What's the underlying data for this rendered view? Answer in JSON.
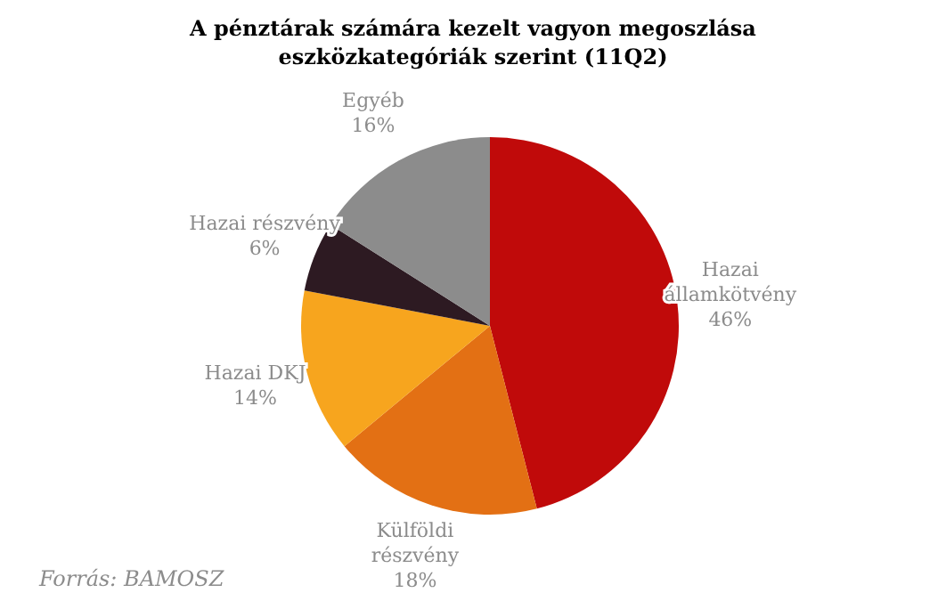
{
  "chart_data": {
    "type": "pie",
    "title": "A pénztárak számára kezelt vagyon megoszlása eszközkategóriák szerint (11Q2)",
    "categories": [
      "Hazai államkötvény",
      "Külföldi részvény",
      "Hazai DKJ",
      "Hazai részvény",
      "Egyéb"
    ],
    "values": [
      46,
      18,
      14,
      6,
      16
    ],
    "colors": [
      "#c00a0a",
      "#e37014",
      "#f7a51e",
      "#2d1a22",
      "#8c8c8c"
    ],
    "value_labels": [
      "46%",
      "18%",
      "14%",
      "6%",
      "16%"
    ],
    "annotations": [
      "Forrás: BAMOSZ"
    ]
  }
}
